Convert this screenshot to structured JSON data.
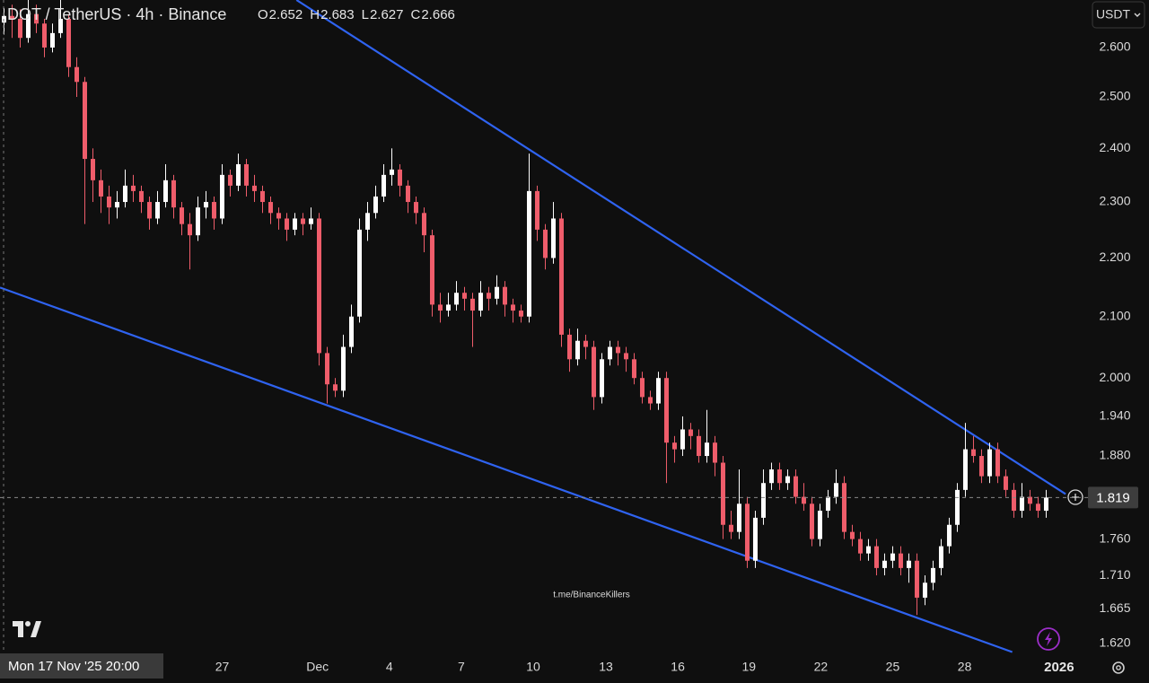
{
  "chart_data": {
    "type": "candlestick",
    "title": "DOT / TetherUS · 4h · Binance",
    "ohlc_labels": [
      "O",
      "H",
      "L",
      "C"
    ],
    "currency": "USDT",
    "crosshair_label": "Mon 17 Nov '25 20:00",
    "watermark": "t.me/BinanceKillers",
    "log": true,
    "up_color": "#ffffff",
    "down_color": "#ef5d6b",
    "line_color": "#2f63f0",
    "ylim": [
      1.605,
      2.7
    ],
    "xlim": [
      -0.5,
      134.17
    ],
    "yticks": [
      {
        "value": 2.6,
        "label": "2.600"
      },
      {
        "value": 2.5,
        "label": "2.500"
      },
      {
        "value": 2.4,
        "label": "2.400"
      },
      {
        "value": 2.3,
        "label": "2.300"
      },
      {
        "value": 2.2,
        "label": "2.200"
      },
      {
        "value": 2.1,
        "label": "2.100"
      },
      {
        "value": 2.0,
        "label": "2.000"
      },
      {
        "value": 1.94,
        "label": "1.940"
      },
      {
        "value": 1.88,
        "label": "1.880"
      },
      {
        "value": 1.76,
        "label": "1.760"
      },
      {
        "value": 1.71,
        "label": "1.710"
      },
      {
        "value": 1.665,
        "label": "1.665"
      },
      {
        "value": 1.62,
        "label": "1.620"
      }
    ],
    "xticks": [
      {
        "value": 27,
        "label": "27"
      },
      {
        "value": 38.8,
        "label": "Dec"
      },
      {
        "value": 47.7,
        "label": "4"
      },
      {
        "value": 56.6,
        "label": "7"
      },
      {
        "value": 65.5,
        "label": "10"
      },
      {
        "value": 74.5,
        "label": "13"
      },
      {
        "value": 83.4,
        "label": "16"
      },
      {
        "value": 92.2,
        "label": "19"
      },
      {
        "value": 101.1,
        "label": "22"
      },
      {
        "value": 110,
        "label": "25"
      },
      {
        "value": 118.9,
        "label": "28"
      },
      {
        "value": 130.6,
        "label": "2026"
      }
    ],
    "trendlines": [
      {
        "x": [
          36.2,
          131.4
        ],
        "y": [
          2.7,
          1.824
        ]
      },
      {
        "x": [
          -0.5,
          124.8
        ],
        "y": [
          2.149,
          1.609
        ]
      }
    ],
    "candles": [
      [
        2.652,
        2.683,
        2.627,
        2.666
      ],
      [
        2.666,
        2.69,
        2.62,
        2.66
      ],
      [
        2.66,
        2.68,
        2.6,
        2.62
      ],
      [
        2.62,
        2.7,
        2.61,
        2.67
      ],
      [
        2.67,
        2.69,
        2.63,
        2.65
      ],
      [
        2.65,
        2.66,
        2.58,
        2.6
      ],
      [
        2.6,
        2.65,
        2.59,
        2.63
      ],
      [
        2.63,
        2.7,
        2.62,
        2.66
      ],
      [
        2.66,
        2.67,
        2.54,
        2.56
      ],
      [
        2.56,
        2.58,
        2.5,
        2.53
      ],
      [
        2.53,
        2.54,
        2.26,
        2.38
      ],
      [
        2.38,
        2.4,
        2.3,
        2.34
      ],
      [
        2.34,
        2.36,
        2.28,
        2.31
      ],
      [
        2.31,
        2.33,
        2.26,
        2.29
      ],
      [
        2.29,
        2.32,
        2.27,
        2.3
      ],
      [
        2.3,
        2.36,
        2.29,
        2.33
      ],
      [
        2.33,
        2.35,
        2.3,
        2.32
      ],
      [
        2.32,
        2.33,
        2.28,
        2.3
      ],
      [
        2.3,
        2.31,
        2.25,
        2.27
      ],
      [
        2.27,
        2.32,
        2.26,
        2.3
      ],
      [
        2.3,
        2.37,
        2.29,
        2.34
      ],
      [
        2.34,
        2.35,
        2.27,
        2.29
      ],
      [
        2.29,
        2.3,
        2.24,
        2.26
      ],
      [
        2.26,
        2.28,
        2.18,
        2.24
      ],
      [
        2.24,
        2.31,
        2.23,
        2.29
      ],
      [
        2.29,
        2.32,
        2.27,
        2.3
      ],
      [
        2.3,
        2.31,
        2.25,
        2.27
      ],
      [
        2.27,
        2.37,
        2.26,
        2.35
      ],
      [
        2.35,
        2.36,
        2.31,
        2.33
      ],
      [
        2.33,
        2.39,
        2.32,
        2.37
      ],
      [
        2.37,
        2.38,
        2.31,
        2.33
      ],
      [
        2.33,
        2.35,
        2.3,
        2.32
      ],
      [
        2.32,
        2.33,
        2.28,
        2.3
      ],
      [
        2.3,
        2.31,
        2.26,
        2.28
      ],
      [
        2.28,
        2.29,
        2.25,
        2.27
      ],
      [
        2.27,
        2.28,
        2.23,
        2.25
      ],
      [
        2.25,
        2.28,
        2.24,
        2.27
      ],
      [
        2.27,
        2.28,
        2.24,
        2.26
      ],
      [
        2.26,
        2.29,
        2.25,
        2.27
      ],
      [
        2.27,
        2.28,
        2.02,
        2.04
      ],
      [
        2.04,
        2.05,
        1.96,
        1.99
      ],
      [
        1.99,
        2.0,
        1.97,
        1.98
      ],
      [
        1.98,
        2.07,
        1.97,
        2.05
      ],
      [
        2.05,
        2.12,
        2.04,
        2.1
      ],
      [
        2.1,
        2.27,
        2.09,
        2.25
      ],
      [
        2.25,
        2.3,
        2.23,
        2.28
      ],
      [
        2.28,
        2.33,
        2.27,
        2.31
      ],
      [
        2.31,
        2.37,
        2.3,
        2.35
      ],
      [
        2.35,
        2.4,
        2.33,
        2.36
      ],
      [
        2.36,
        2.37,
        2.31,
        2.33
      ],
      [
        2.33,
        2.34,
        2.28,
        2.3
      ],
      [
        2.3,
        2.31,
        2.26,
        2.28
      ],
      [
        2.28,
        2.29,
        2.21,
        2.24
      ],
      [
        2.24,
        2.25,
        2.1,
        2.12
      ],
      [
        2.12,
        2.14,
        2.09,
        2.11
      ],
      [
        2.11,
        2.14,
        2.1,
        2.12
      ],
      [
        2.12,
        2.16,
        2.11,
        2.14
      ],
      [
        2.14,
        2.15,
        2.11,
        2.13
      ],
      [
        2.13,
        2.14,
        2.05,
        2.11
      ],
      [
        2.11,
        2.16,
        2.1,
        2.14
      ],
      [
        2.14,
        2.15,
        2.11,
        2.13
      ],
      [
        2.13,
        2.17,
        2.12,
        2.15
      ],
      [
        2.15,
        2.16,
        2.1,
        2.12
      ],
      [
        2.12,
        2.13,
        2.09,
        2.11
      ],
      [
        2.11,
        2.12,
        2.09,
        2.1
      ],
      [
        2.1,
        2.39,
        2.09,
        2.32
      ],
      [
        2.32,
        2.33,
        2.23,
        2.25
      ],
      [
        2.25,
        2.26,
        2.18,
        2.2
      ],
      [
        2.2,
        2.3,
        2.19,
        2.27
      ],
      [
        2.27,
        2.28,
        2.05,
        2.07
      ],
      [
        2.07,
        2.08,
        2.01,
        2.03
      ],
      [
        2.03,
        2.08,
        2.02,
        2.06
      ],
      [
        2.06,
        2.07,
        2.03,
        2.05
      ],
      [
        2.05,
        2.06,
        1.95,
        1.97
      ],
      [
        1.97,
        2.04,
        1.96,
        2.03
      ],
      [
        2.03,
        2.06,
        2.02,
        2.05
      ],
      [
        2.05,
        2.06,
        2.02,
        2.04
      ],
      [
        2.04,
        2.05,
        2.01,
        2.03
      ],
      [
        2.03,
        2.04,
        1.99,
        2.0
      ],
      [
        2.0,
        2.01,
        1.96,
        1.97
      ],
      [
        1.97,
        1.98,
        1.95,
        1.96
      ],
      [
        1.96,
        2.01,
        1.95,
        2.0
      ],
      [
        2.0,
        2.01,
        1.84,
        1.9
      ],
      [
        1.9,
        1.91,
        1.87,
        1.89
      ],
      [
        1.89,
        1.94,
        1.88,
        1.92
      ],
      [
        1.92,
        1.93,
        1.89,
        1.91
      ],
      [
        1.91,
        1.92,
        1.87,
        1.88
      ],
      [
        1.88,
        1.95,
        1.87,
        1.9
      ],
      [
        1.9,
        1.91,
        1.85,
        1.87
      ],
      [
        1.87,
        1.88,
        1.76,
        1.78
      ],
      [
        1.78,
        1.8,
        1.76,
        1.77
      ],
      [
        1.77,
        1.86,
        1.76,
        1.81
      ],
      [
        1.81,
        1.82,
        1.72,
        1.73
      ],
      [
        1.73,
        1.8,
        1.72,
        1.79
      ],
      [
        1.79,
        1.86,
        1.78,
        1.84
      ],
      [
        1.84,
        1.87,
        1.83,
        1.86
      ],
      [
        1.86,
        1.87,
        1.83,
        1.84
      ],
      [
        1.84,
        1.86,
        1.83,
        1.85
      ],
      [
        1.85,
        1.86,
        1.81,
        1.82
      ],
      [
        1.82,
        1.84,
        1.8,
        1.81
      ],
      [
        1.81,
        1.82,
        1.75,
        1.76
      ],
      [
        1.76,
        1.81,
        1.75,
        1.8
      ],
      [
        1.8,
        1.83,
        1.79,
        1.82
      ],
      [
        1.82,
        1.86,
        1.81,
        1.84
      ],
      [
        1.84,
        1.85,
        1.76,
        1.77
      ],
      [
        1.77,
        1.78,
        1.75,
        1.76
      ],
      [
        1.76,
        1.77,
        1.73,
        1.74
      ],
      [
        1.74,
        1.76,
        1.73,
        1.75
      ],
      [
        1.75,
        1.76,
        1.71,
        1.72
      ],
      [
        1.72,
        1.74,
        1.71,
        1.73
      ],
      [
        1.73,
        1.75,
        1.72,
        1.74
      ],
      [
        1.74,
        1.75,
        1.71,
        1.72
      ],
      [
        1.72,
        1.74,
        1.7,
        1.73
      ],
      [
        1.73,
        1.74,
        1.657,
        1.68
      ],
      [
        1.68,
        1.71,
        1.67,
        1.7
      ],
      [
        1.7,
        1.73,
        1.69,
        1.72
      ],
      [
        1.72,
        1.76,
        1.71,
        1.75
      ],
      [
        1.75,
        1.79,
        1.74,
        1.78
      ],
      [
        1.78,
        1.84,
        1.77,
        1.83
      ],
      [
        1.83,
        1.93,
        1.82,
        1.89
      ],
      [
        1.89,
        1.91,
        1.87,
        1.88
      ],
      [
        1.88,
        1.89,
        1.84,
        1.85
      ],
      [
        1.85,
        1.9,
        1.84,
        1.89
      ],
      [
        1.89,
        1.9,
        1.84,
        1.85
      ],
      [
        1.85,
        1.86,
        1.82,
        1.83
      ],
      [
        1.83,
        1.84,
        1.79,
        1.8
      ],
      [
        1.8,
        1.84,
        1.79,
        1.82
      ],
      [
        1.82,
        1.83,
        1.8,
        1.81
      ],
      [
        1.81,
        1.82,
        1.79,
        1.8
      ],
      [
        1.8,
        1.83,
        1.79,
        1.819
      ]
    ]
  }
}
